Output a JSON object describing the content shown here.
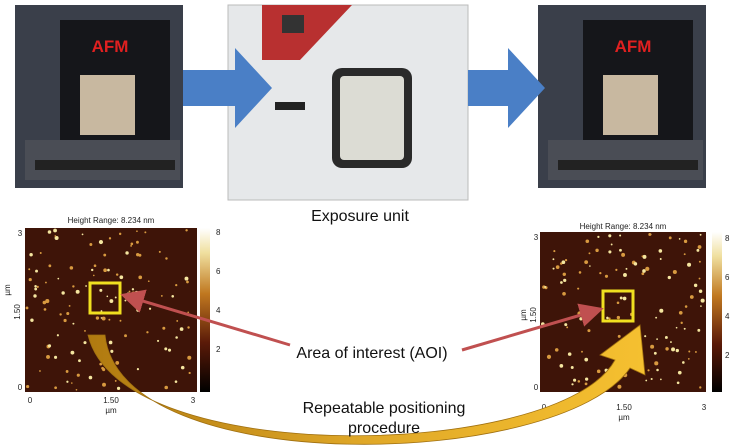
{
  "photos": {
    "left_label": "AFM",
    "right_label": "AFM",
    "center_caption": "Exposure unit"
  },
  "left_scan": {
    "title": "Height Range: 8.234 nm",
    "y_ticks": [
      "3",
      "1.50",
      "0"
    ],
    "x_ticks": [
      "0",
      "1.50",
      "3"
    ],
    "x_axis_label": "µm",
    "y_axis_label": "µm",
    "colorbar_ticks": [
      "8",
      "6",
      "4",
      "2"
    ]
  },
  "right_scan": {
    "title": "Height Range: 8.234 nm",
    "y_ticks": [
      "3",
      "1.50",
      "0"
    ],
    "x_ticks": [
      "0",
      "1.50",
      "3"
    ],
    "x_axis_label": "µm",
    "y_axis_label": "µm",
    "colorbar_ticks": [
      "8",
      "6",
      "4",
      "2"
    ]
  },
  "annotations": {
    "aoi": "Area of interest (AOI)",
    "procedure_lines": [
      "Repeatable positioning",
      "procedure"
    ]
  }
}
